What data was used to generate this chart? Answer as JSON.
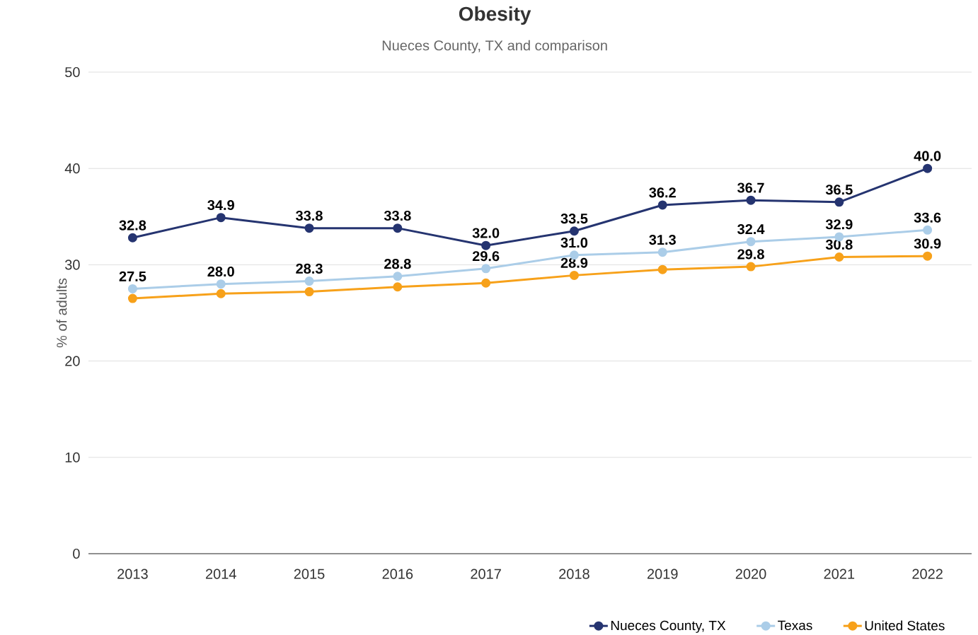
{
  "chart_data": {
    "type": "line",
    "title": "Obesity",
    "subtitle": "Nueces County, TX and comparison",
    "ylabel": "% of adults",
    "categories": [
      "2013",
      "2014",
      "2015",
      "2016",
      "2017",
      "2018",
      "2019",
      "2020",
      "2021",
      "2022"
    ],
    "series": [
      {
        "name": "Nueces County, TX",
        "color": "#253470",
        "values": [
          32.8,
          34.9,
          33.8,
          33.8,
          32.0,
          33.5,
          36.2,
          36.7,
          36.5,
          40.0
        ],
        "value_labels": [
          "32.8",
          "34.9",
          "33.8",
          "33.8",
          "32.0",
          "33.5",
          "36.2",
          "36.7",
          "36.5",
          "40.0"
        ]
      },
      {
        "name": "Texas",
        "color": "#abcde8",
        "values": [
          27.5,
          28.0,
          28.3,
          28.8,
          29.6,
          31.0,
          31.3,
          32.4,
          32.9,
          33.6
        ],
        "value_labels": [
          "27.5",
          "28.0",
          "28.3",
          "28.8",
          "29.6",
          "31.0",
          "31.3",
          "32.4",
          "32.9",
          "33.6"
        ]
      },
      {
        "name": "United States",
        "color": "#f7a11a",
        "values": [
          26.5,
          27.0,
          27.2,
          27.7,
          28.1,
          28.9,
          29.5,
          29.8,
          30.8,
          30.9
        ],
        "value_labels": [
          null,
          null,
          null,
          null,
          null,
          "28.9",
          null,
          "29.8",
          "30.8",
          "30.9"
        ]
      }
    ],
    "ylim": [
      0,
      50
    ],
    "yticks": [
      0,
      10,
      20,
      30,
      40,
      50
    ],
    "grid": "y",
    "legend": "bottom right",
    "marker": "circle",
    "line_style": "solid"
  }
}
